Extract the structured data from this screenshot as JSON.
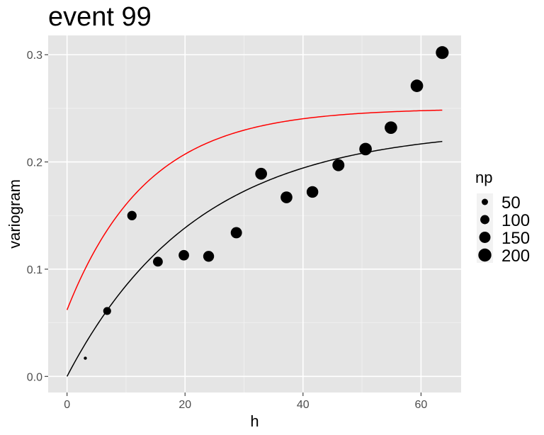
{
  "chart_data": {
    "type": "scatter",
    "title": "event  99",
    "xlabel": "h",
    "ylabel": "variogram",
    "xlim": [
      -3.2,
      66.8
    ],
    "ylim": [
      -0.015,
      0.318
    ],
    "xticks": [
      0,
      20,
      40,
      60
    ],
    "xtick_labels": [
      "0",
      "20",
      "40",
      "60"
    ],
    "yticks": [
      0.0,
      0.1,
      0.2,
      0.3
    ],
    "ytick_labels": [
      "0.0",
      "0.1",
      "0.2",
      "0.3"
    ],
    "grid": true,
    "background": "#e5e5e5",
    "points": {
      "x": [
        3.1,
        6.8,
        11.0,
        15.4,
        19.8,
        24.0,
        28.7,
        32.9,
        37.2,
        41.6,
        46.0,
        50.6,
        54.9,
        59.3,
        63.6
      ],
      "y": [
        0.017,
        0.061,
        0.15,
        0.107,
        0.113,
        0.112,
        0.134,
        0.189,
        0.167,
        0.172,
        0.197,
        0.212,
        0.232,
        0.271,
        0.302
      ],
      "np": [
        15,
        75,
        105,
        115,
        130,
        140,
        150,
        165,
        165,
        160,
        170,
        185,
        185,
        185,
        195
      ],
      "color": "#000000"
    },
    "curves": [
      {
        "model": "exponential",
        "nugget": 0.0,
        "psill": 0.232,
        "range": 22.0,
        "x_range": [
          0,
          63.6
        ],
        "color": "#000000"
      },
      {
        "model": "exponential",
        "nugget": 0.062,
        "psill": 0.188,
        "range": 13.5,
        "x_range": [
          0,
          63.6
        ],
        "color": "#ff0000"
      }
    ],
    "legend": {
      "title": "np",
      "position": "right",
      "entries": [
        {
          "label": "50",
          "value": 50
        },
        {
          "label": "100",
          "value": 100
        },
        {
          "label": "150",
          "value": 150
        },
        {
          "label": "200",
          "value": 200
        }
      ]
    },
    "size_scale": {
      "domain": [
        15,
        200
      ],
      "range": [
        2.2,
        9.2
      ]
    }
  }
}
